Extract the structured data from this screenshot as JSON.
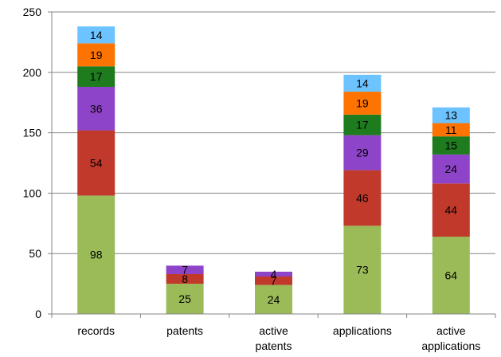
{
  "chart_data": {
    "type": "bar",
    "stacked": true,
    "title": "",
    "xlabel": "",
    "ylabel": "",
    "ylim": [
      0,
      250
    ],
    "yticks": [
      0,
      50,
      100,
      150,
      200,
      250
    ],
    "grid": true,
    "legend": "none",
    "categories": [
      [
        "records"
      ],
      [
        "patents"
      ],
      [
        "active",
        "patents"
      ],
      [
        "applications"
      ],
      [
        "active",
        "applications"
      ]
    ],
    "series": [
      {
        "color": "#9BBB59",
        "values": [
          98,
          25,
          24,
          73,
          64
        ]
      },
      {
        "color": "#C0392B",
        "values": [
          54,
          8,
          7,
          46,
          44
        ]
      },
      {
        "color": "#8E44C8",
        "values": [
          36,
          7,
          4,
          29,
          24
        ]
      },
      {
        "color": "#1E7B1E",
        "values": [
          17,
          0,
          0,
          17,
          15
        ]
      },
      {
        "color": "#FF7300",
        "values": [
          19,
          0,
          0,
          19,
          11
        ]
      },
      {
        "color": "#6CC3FF",
        "values": [
          14,
          0,
          0,
          14,
          13
        ]
      }
    ]
  }
}
